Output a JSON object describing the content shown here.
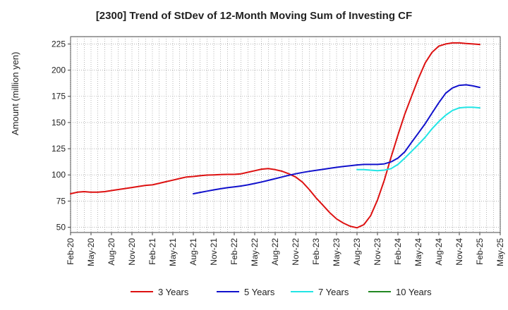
{
  "chart_data": {
    "type": "line",
    "title": "[2300]  Trend of StDev of 12-Month Moving Sum of Investing CF",
    "xlabel": "",
    "ylabel": "Amount (million yen)",
    "ylim": [
      45,
      232
    ],
    "yticks": [
      50,
      75,
      100,
      125,
      150,
      175,
      200,
      225
    ],
    "x_tick_labels": [
      "Feb-20",
      "May-20",
      "Aug-20",
      "Nov-20",
      "Feb-21",
      "May-21",
      "Aug-21",
      "Nov-21",
      "Feb-22",
      "May-22",
      "Aug-22",
      "Nov-22",
      "Feb-23",
      "May-23",
      "Aug-23",
      "Nov-23",
      "Feb-24",
      "May-24",
      "Aug-24",
      "Nov-24",
      "Feb-25",
      "May-25"
    ],
    "grid": true,
    "legend_position": "bottom",
    "series": [
      {
        "name": "3 Years",
        "color": "#dd1111",
        "x": [
          "Feb-20",
          "Mar-20",
          "Apr-20",
          "May-20",
          "Jun-20",
          "Jul-20",
          "Aug-20",
          "Sep-20",
          "Oct-20",
          "Nov-20",
          "Dec-20",
          "Jan-21",
          "Feb-21",
          "Mar-21",
          "Apr-21",
          "May-21",
          "Jun-21",
          "Jul-21",
          "Aug-21",
          "Sep-21",
          "Oct-21",
          "Nov-21",
          "Dec-21",
          "Jan-22",
          "Feb-22",
          "Mar-22",
          "Apr-22",
          "May-22",
          "Jun-22",
          "Jul-22",
          "Aug-22",
          "Sep-22",
          "Oct-22",
          "Nov-22",
          "Dec-22",
          "Jan-23",
          "Feb-23",
          "Mar-23",
          "Apr-23",
          "May-23",
          "Jun-23",
          "Jul-23",
          "Aug-23",
          "Sep-23",
          "Oct-23",
          "Nov-23",
          "Dec-23",
          "Jan-24",
          "Feb-24",
          "Mar-24",
          "Apr-24",
          "May-24",
          "Jun-24",
          "Jul-24",
          "Aug-24",
          "Sep-24",
          "Oct-24",
          "Nov-24",
          "Dec-24",
          "Jan-25",
          "Feb-25"
        ],
        "values": [
          82,
          83.5,
          84,
          83.5,
          83.5,
          84,
          85,
          86,
          87,
          88,
          89,
          90,
          90.5,
          92,
          93.5,
          95,
          96.5,
          98,
          98.5,
          99.2,
          99.8,
          100,
          100.3,
          100.5,
          100.5,
          101,
          102.5,
          104,
          105.5,
          106,
          105,
          103.5,
          101,
          98,
          93,
          86,
          78,
          71,
          64,
          58,
          54,
          51,
          49.5,
          52.5,
          61,
          76,
          95,
          117,
          138,
          158,
          175,
          192,
          207,
          217,
          223,
          225,
          226,
          226,
          225.5,
          225,
          224.5
        ]
      },
      {
        "name": "5 Years",
        "color": "#1111cc",
        "x": [
          "Aug-21",
          "Sep-21",
          "Oct-21",
          "Nov-21",
          "Dec-21",
          "Jan-22",
          "Feb-22",
          "Mar-22",
          "Apr-22",
          "May-22",
          "Jun-22",
          "Jul-22",
          "Aug-22",
          "Sep-22",
          "Oct-22",
          "Nov-22",
          "Dec-22",
          "Jan-23",
          "Feb-23",
          "Mar-23",
          "Apr-23",
          "May-23",
          "Jun-23",
          "Jul-23",
          "Aug-23",
          "Sep-23",
          "Oct-23",
          "Nov-23",
          "Dec-23",
          "Jan-24",
          "Feb-24",
          "Mar-24",
          "Apr-24",
          "May-24",
          "Jun-24",
          "Jul-24",
          "Aug-24",
          "Sep-24",
          "Oct-24",
          "Nov-24",
          "Dec-24",
          "Jan-25",
          "Feb-25"
        ],
        "values": [
          82,
          83.3,
          84.5,
          85.7,
          86.8,
          87.8,
          88.6,
          89.4,
          90.5,
          91.8,
          93.2,
          94.8,
          96.4,
          98,
          99.6,
          101,
          102.3,
          103.4,
          104.4,
          105.3,
          106.3,
          107.2,
          108,
          108.8,
          109.5,
          110,
          110,
          110,
          110.5,
          112.5,
          116,
          122,
          131,
          140,
          149,
          159,
          169,
          178,
          183,
          185.5,
          186,
          185,
          183.5
        ]
      },
      {
        "name": "7 Years",
        "color": "#22e5e5",
        "x": [
          "Aug-23",
          "Sep-23",
          "Oct-23",
          "Nov-23",
          "Dec-23",
          "Jan-24",
          "Feb-24",
          "Mar-24",
          "Apr-24",
          "May-24",
          "Jun-24",
          "Jul-24",
          "Aug-24",
          "Sep-24",
          "Oct-24",
          "Nov-24",
          "Dec-24",
          "Jan-25",
          "Feb-25"
        ],
        "values": [
          105,
          105,
          104.5,
          104,
          104.5,
          106,
          110,
          116,
          122.5,
          129,
          136,
          144,
          151,
          157,
          161.5,
          164,
          164.5,
          164.5,
          164
        ]
      },
      {
        "name": "10 Years",
        "color": "#228822",
        "x": [],
        "values": []
      }
    ]
  }
}
